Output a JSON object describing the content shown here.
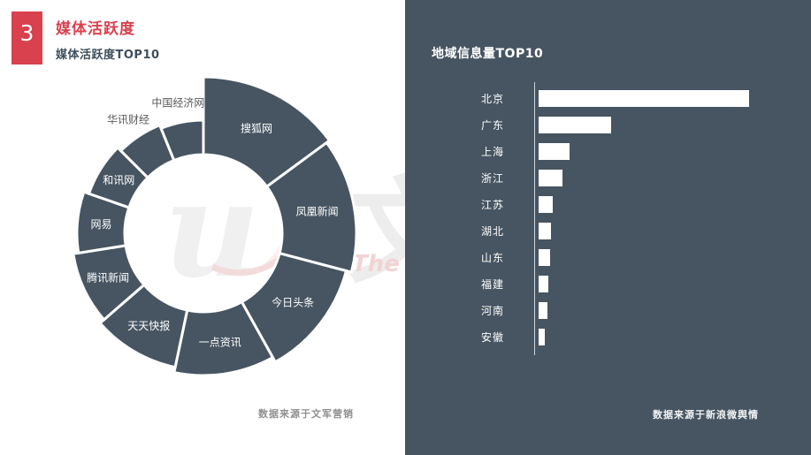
{
  "slide": {
    "badge_number": "3",
    "title": "媒体活跃度",
    "subtitle": "媒体活跃度TOP10",
    "accent_color": "#D8414D",
    "panel_color": "#475562"
  },
  "watermark": {
    "logo_icon": "wenjun-swoosh-logo",
    "cn_glyph": "文",
    "en_text": "The s"
  },
  "left_chart": {
    "caption": "数据来源于文军营销"
  },
  "right_chart": {
    "title": "地域信息量TOP10",
    "caption": "数据来源于新浪微舆情"
  },
  "chart_data": [
    {
      "type": "pie",
      "subtype": "rose-donut",
      "title": "媒体活跃度TOP10",
      "color": "#475562",
      "label_color_inside": "#FFFFFF",
      "label_color_outside": "#5A5A5A",
      "inner_radius_px": 89,
      "start_angle_deg": 0,
      "legend_position": "none",
      "items": [
        {
          "name": "搜狐网",
          "share_pct": 14.9,
          "outer_radius_px": 177,
          "label_inside": true
        },
        {
          "name": "凤凰新闻",
          "share_pct": 14.2,
          "outer_radius_px": 173,
          "label_inside": true
        },
        {
          "name": "今日头条",
          "share_pct": 12.8,
          "outer_radius_px": 167,
          "label_inside": true
        },
        {
          "name": "一点资讯",
          "share_pct": 11.4,
          "outer_radius_px": 161,
          "label_inside": true
        },
        {
          "name": "天天快报",
          "share_pct": 10.3,
          "outer_radius_px": 155,
          "label_inside": true
        },
        {
          "name": "腾讯新闻",
          "share_pct": 8.9,
          "outer_radius_px": 149,
          "label_inside": true
        },
        {
          "name": "网易",
          "share_pct": 7.8,
          "outer_radius_px": 143,
          "label_inside": true
        },
        {
          "name": "和讯网",
          "share_pct": 7.2,
          "outer_radius_px": 137,
          "label_inside": true
        },
        {
          "name": "华讯财经",
          "share_pct": 6.4,
          "outer_radius_px": 132,
          "label_inside": false
        },
        {
          "name": "中国经济网",
          "share_pct": 6.1,
          "outer_radius_px": 128,
          "label_inside": false
        }
      ]
    },
    {
      "type": "bar",
      "orientation": "horizontal",
      "title": "地域信息量TOP10",
      "categories": [
        "北京",
        "广东",
        "上海",
        "浙江",
        "江苏",
        "湖北",
        "山东",
        "福建",
        "河南",
        "安徽"
      ],
      "values_pct_of_max": [
        100,
        34.5,
        14.7,
        11.3,
        6.7,
        5.9,
        5.5,
        4.6,
        4.2,
        2.9
      ],
      "bar_color": "#FFFFFF",
      "value_axis_labels_shown": false,
      "grid": false
    }
  ]
}
